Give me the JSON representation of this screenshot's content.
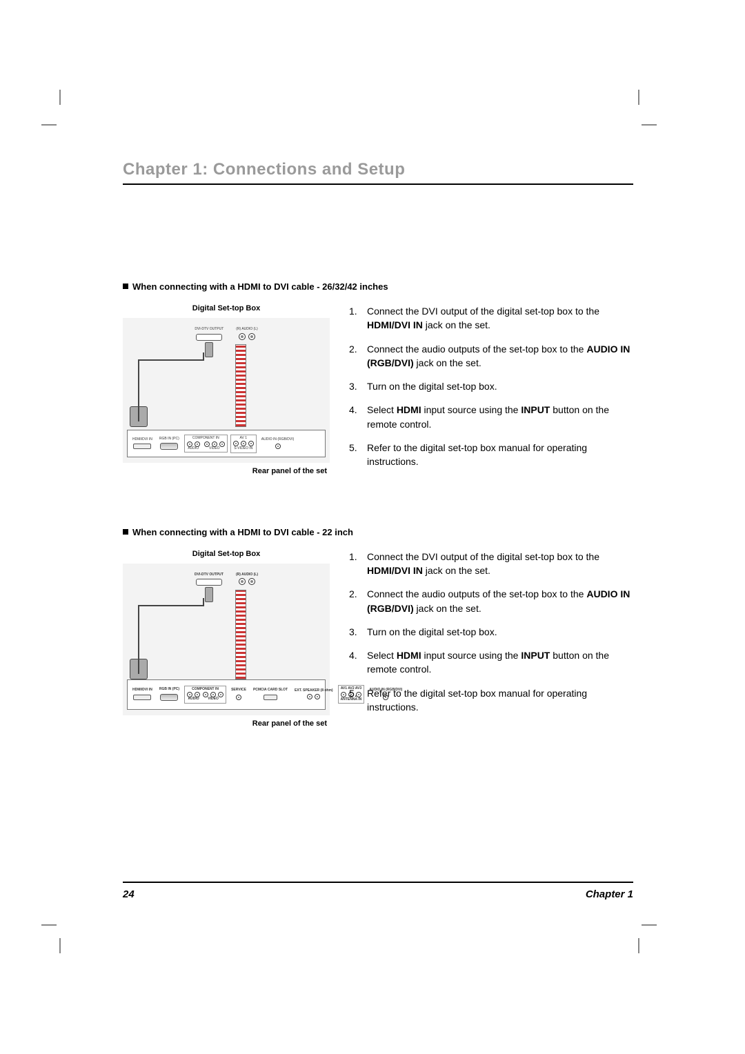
{
  "chapter_title": "Chapter 1: Connections and Setup",
  "page_number": "24",
  "footer_chapter": "Chapter 1",
  "colors": {
    "title_gray": "#9a9a9a",
    "rule": "#000000",
    "panel_bg": "#f3f3f3",
    "cable_red": "#c33"
  },
  "figure_labels": {
    "source_title": "Digital Set-top Box",
    "rear_caption": "Rear panel of the set",
    "dvi_out": "DVI-DTV OUTPUT",
    "audio_out": "(R) AUDIO (L)",
    "hdmi_in": "HDMI/DVI IN",
    "rgb_in": "RGB IN (PC)",
    "component_in": "COMPONENT IN",
    "audio_grp": "AUDIO",
    "video_grp": "VIDEO",
    "av1": "AV 1",
    "s_video_in": "S-VIDEO IN",
    "audio_in_rgb": "AUDIO IN (RGB/DVI)",
    "service": "SERVICE",
    "pcmcia": "PCMCIA CARD SLOT",
    "antenna": "ANTENNA IN",
    "speaker": "EXT. SPEAKER (8 ohm)"
  },
  "sections": [
    {
      "heading": "When connecting with a HDMI to DVI cable - 26/32/42 inches",
      "steps": [
        {
          "pre": "Connect the DVI output of the digital set-top box to the ",
          "bold": "HDMI/DVI IN",
          "post": " jack on the set."
        },
        {
          "pre": "Connect the audio outputs of the set-top box to the ",
          "bold": "AUDIO IN (RGB/DVI)",
          "post": " jack on the set."
        },
        {
          "pre": "Turn on the digital set-top box.",
          "bold": "",
          "post": ""
        },
        {
          "pre": "Select ",
          "bold": "HDMI",
          "post": " input source using the ",
          "bold2": "INPUT",
          "post2": " button on the remote control."
        },
        {
          "pre": "Refer to the digital set-top box manual for operating instructions.",
          "bold": "",
          "post": ""
        }
      ]
    },
    {
      "heading": "When connecting with a HDMI to DVI cable - 22 inch",
      "steps": [
        {
          "pre": "Connect the DVI output of the digital set-top box to the ",
          "bold": "HDMI/DVI IN",
          "post": " jack on the set."
        },
        {
          "pre": "Connect the audio outputs of the set-top box to the ",
          "bold": "AUDIO IN (RGB/DVI)",
          "post": " jack on the set."
        },
        {
          "pre": "Turn on the digital set-top box.",
          "bold": "",
          "post": ""
        },
        {
          "pre": "Select ",
          "bold": "HDMI",
          "post": " input source using the ",
          "bold2": "INPUT",
          "post2": " button on the remote control."
        },
        {
          "pre": "Refer to the digital set-top box manual for operating instructions.",
          "bold": "",
          "post": ""
        }
      ]
    }
  ]
}
